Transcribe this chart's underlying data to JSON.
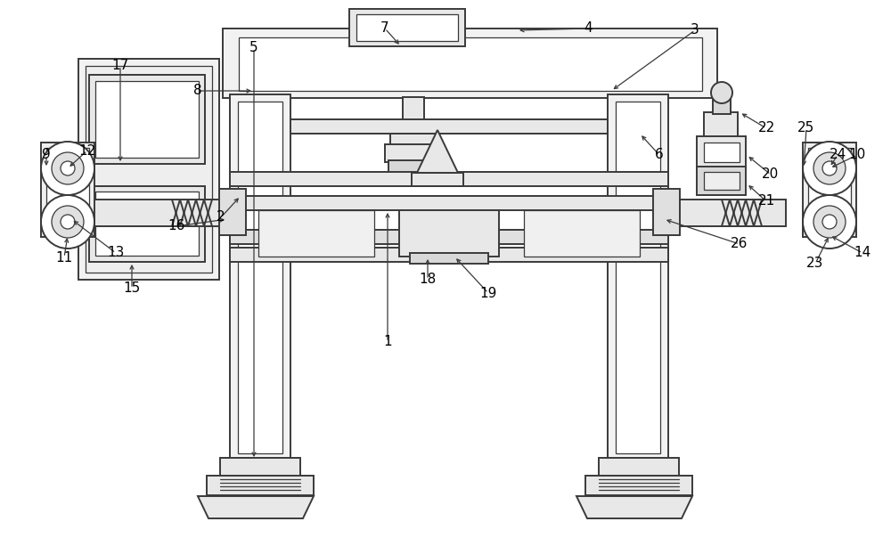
{
  "bg_color": "#ffffff",
  "lc": "#3a3a3a",
  "lw": 1.4,
  "lw_thin": 0.9,
  "figsize": [
    10.0,
    6.04
  ],
  "dpi": 100
}
